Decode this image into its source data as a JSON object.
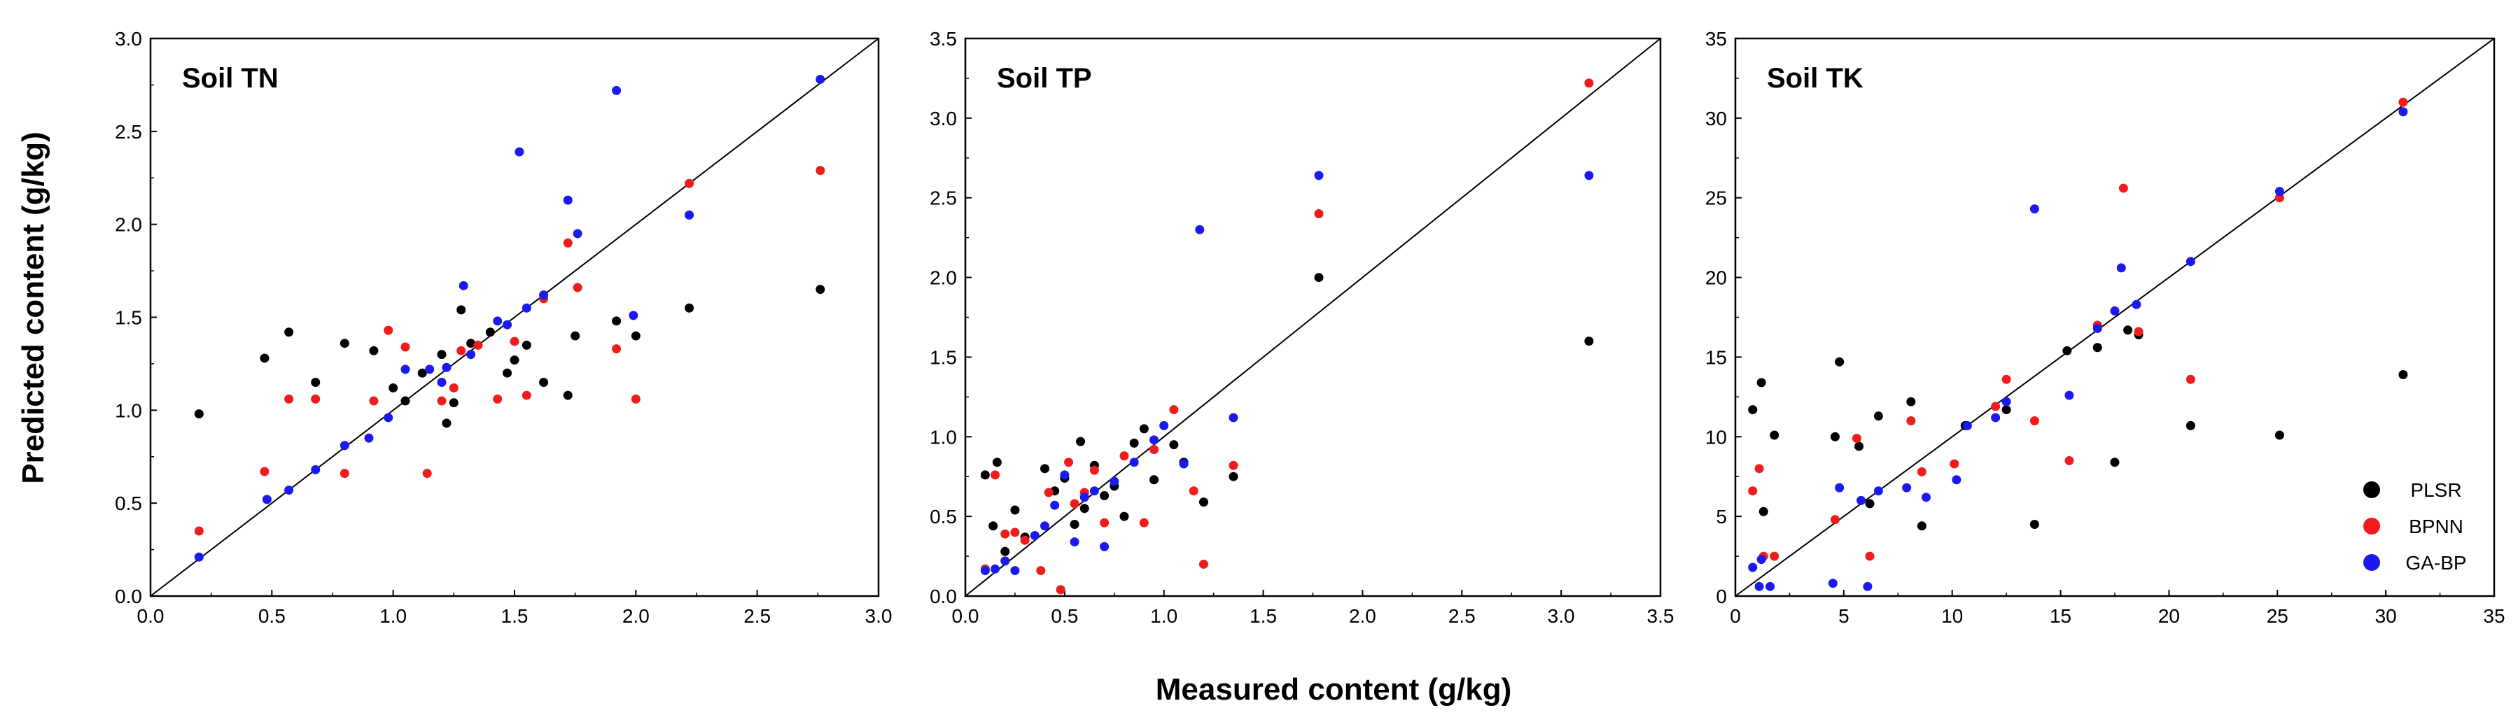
{
  "xlabel": "Measured content (g/kg)",
  "ylabel": "Predicted content (g/kg)",
  "legend": [
    {
      "name": "PLSR",
      "color": "#000000"
    },
    {
      "name": "BPNN",
      "color": "#ee1c1c"
    },
    {
      "name": "GA-BP",
      "color": "#1a1aee"
    }
  ],
  "chart_data": [
    {
      "type": "scatter",
      "title": "Soil TN",
      "xlim": [
        0,
        3.0
      ],
      "ylim": [
        0,
        3.0
      ],
      "xticks": [
        "0.0",
        "0.5",
        "1.0",
        "1.5",
        "2.0",
        "2.5",
        "3.0"
      ],
      "yticks": [
        "0.0",
        "0.5",
        "1.0",
        "1.5",
        "2.0",
        "2.5",
        "3.0"
      ],
      "tickvals": [
        0,
        0.5,
        1.0,
        1.5,
        2.0,
        2.5,
        3.0
      ],
      "reference_line": "1:1",
      "series": [
        {
          "name": "PLSR",
          "color": "#000000",
          "points": [
            [
              0.2,
              0.98
            ],
            [
              0.47,
              1.28
            ],
            [
              0.57,
              1.42
            ],
            [
              0.68,
              1.15
            ],
            [
              0.8,
              1.36
            ],
            [
              0.92,
              1.32
            ],
            [
              1.0,
              1.12
            ],
            [
              1.05,
              1.05
            ],
            [
              1.12,
              1.2
            ],
            [
              1.2,
              1.3
            ],
            [
              1.22,
              0.93
            ],
            [
              1.25,
              1.04
            ],
            [
              1.28,
              1.54
            ],
            [
              1.32,
              1.36
            ],
            [
              1.4,
              1.42
            ],
            [
              1.47,
              1.2
            ],
            [
              1.5,
              1.27
            ],
            [
              1.55,
              1.35
            ],
            [
              1.62,
              1.15
            ],
            [
              1.72,
              1.08
            ],
            [
              1.75,
              1.4
            ],
            [
              1.92,
              1.48
            ],
            [
              2.0,
              1.4
            ],
            [
              2.22,
              1.55
            ],
            [
              2.76,
              1.65
            ]
          ]
        },
        {
          "name": "BPNN",
          "color": "#ee1c1c",
          "points": [
            [
              0.2,
              0.35
            ],
            [
              0.47,
              0.67
            ],
            [
              0.57,
              1.06
            ],
            [
              0.68,
              1.06
            ],
            [
              0.8,
              0.66
            ],
            [
              0.92,
              1.05
            ],
            [
              0.98,
              1.43
            ],
            [
              1.05,
              1.34
            ],
            [
              1.14,
              0.66
            ],
            [
              1.2,
              1.05
            ],
            [
              1.25,
              1.12
            ],
            [
              1.28,
              1.32
            ],
            [
              1.35,
              1.35
            ],
            [
              1.43,
              1.06
            ],
            [
              1.5,
              1.37
            ],
            [
              1.55,
              1.08
            ],
            [
              1.62,
              1.6
            ],
            [
              1.72,
              1.9
            ],
            [
              1.76,
              1.66
            ],
            [
              1.92,
              1.33
            ],
            [
              2.0,
              1.06
            ],
            [
              2.22,
              2.22
            ],
            [
              2.76,
              2.29
            ]
          ]
        },
        {
          "name": "GA-BP",
          "color": "#1a1aee",
          "points": [
            [
              0.2,
              0.21
            ],
            [
              0.48,
              0.52
            ],
            [
              0.57,
              0.57
            ],
            [
              0.68,
              0.68
            ],
            [
              0.8,
              0.81
            ],
            [
              0.9,
              0.85
            ],
            [
              0.98,
              0.96
            ],
            [
              1.05,
              1.22
            ],
            [
              1.15,
              1.22
            ],
            [
              1.2,
              1.15
            ],
            [
              1.22,
              1.23
            ],
            [
              1.29,
              1.67
            ],
            [
              1.32,
              1.3
            ],
            [
              1.43,
              1.48
            ],
            [
              1.47,
              1.46
            ],
            [
              1.52,
              2.39
            ],
            [
              1.55,
              1.55
            ],
            [
              1.62,
              1.62
            ],
            [
              1.72,
              2.13
            ],
            [
              1.76,
              1.95
            ],
            [
              1.92,
              2.72
            ],
            [
              1.99,
              1.51
            ],
            [
              2.22,
              2.05
            ],
            [
              2.76,
              2.78
            ]
          ]
        }
      ]
    },
    {
      "type": "scatter",
      "title": "Soil TP",
      "xlim": [
        0,
        3.5
      ],
      "ylim": [
        0,
        3.5
      ],
      "xticks": [
        "0.0",
        "0.5",
        "1.0",
        "1.5",
        "2.0",
        "2.5",
        "3.0",
        "3.5"
      ],
      "yticks": [
        "0.0",
        "0.5",
        "1.0",
        "1.5",
        "2.0",
        "2.5",
        "3.0",
        "3.5"
      ],
      "tickvals": [
        0,
        0.5,
        1.0,
        1.5,
        2.0,
        2.5,
        3.0,
        3.5
      ],
      "reference_line": "1:1",
      "series": [
        {
          "name": "PLSR",
          "color": "#000000",
          "points": [
            [
              0.1,
              0.76
            ],
            [
              0.14,
              0.44
            ],
            [
              0.16,
              0.84
            ],
            [
              0.2,
              0.28
            ],
            [
              0.25,
              0.54
            ],
            [
              0.3,
              0.37
            ],
            [
              0.4,
              0.8
            ],
            [
              0.45,
              0.66
            ],
            [
              0.5,
              0.74
            ],
            [
              0.55,
              0.45
            ],
            [
              0.58,
              0.97
            ],
            [
              0.6,
              0.55
            ],
            [
              0.65,
              0.82
            ],
            [
              0.7,
              0.63
            ],
            [
              0.75,
              0.69
            ],
            [
              0.8,
              0.5
            ],
            [
              0.85,
              0.96
            ],
            [
              0.9,
              1.05
            ],
            [
              0.95,
              0.73
            ],
            [
              1.05,
              0.95
            ],
            [
              1.1,
              0.84
            ],
            [
              1.2,
              0.59
            ],
            [
              1.35,
              0.75
            ],
            [
              1.78,
              2.0
            ],
            [
              3.14,
              1.6
            ]
          ]
        },
        {
          "name": "BPNN",
          "color": "#ee1c1c",
          "points": [
            [
              0.1,
              0.17
            ],
            [
              0.15,
              0.76
            ],
            [
              0.2,
              0.39
            ],
            [
              0.25,
              0.4
            ],
            [
              0.3,
              0.35
            ],
            [
              0.38,
              0.16
            ],
            [
              0.42,
              0.65
            ],
            [
              0.48,
              0.04
            ],
            [
              0.52,
              0.84
            ],
            [
              0.55,
              0.58
            ],
            [
              0.6,
              0.65
            ],
            [
              0.65,
              0.79
            ],
            [
              0.7,
              0.46
            ],
            [
              0.8,
              0.88
            ],
            [
              0.9,
              0.46
            ],
            [
              0.95,
              0.92
            ],
            [
              1.05,
              1.17
            ],
            [
              1.15,
              0.66
            ],
            [
              1.2,
              0.2
            ],
            [
              1.35,
              0.82
            ],
            [
              1.78,
              2.4
            ],
            [
              3.14,
              3.22
            ]
          ]
        },
        {
          "name": "GA-BP",
          "color": "#1a1aee",
          "points": [
            [
              0.1,
              0.16
            ],
            [
              0.15,
              0.17
            ],
            [
              0.2,
              0.22
            ],
            [
              0.25,
              0.16
            ],
            [
              0.35,
              0.38
            ],
            [
              0.4,
              0.44
            ],
            [
              0.45,
              0.57
            ],
            [
              0.5,
              0.76
            ],
            [
              0.55,
              0.34
            ],
            [
              0.6,
              0.62
            ],
            [
              0.65,
              0.66
            ],
            [
              0.7,
              0.31
            ],
            [
              0.75,
              0.72
            ],
            [
              0.85,
              0.84
            ],
            [
              0.95,
              0.98
            ],
            [
              1.0,
              1.07
            ],
            [
              1.1,
              0.83
            ],
            [
              1.18,
              2.3
            ],
            [
              1.35,
              1.12
            ],
            [
              1.78,
              2.64
            ],
            [
              3.14,
              2.64
            ]
          ]
        }
      ]
    },
    {
      "type": "scatter",
      "title": "Soil TK",
      "xlim": [
        0,
        35
      ],
      "ylim": [
        0,
        35
      ],
      "xticks": [
        "0",
        "5",
        "10",
        "15",
        "20",
        "25",
        "30",
        "35"
      ],
      "yticks": [
        "0",
        "5",
        "10",
        "15",
        "20",
        "25",
        "30",
        "35"
      ],
      "tickvals": [
        0,
        5,
        10,
        15,
        20,
        25,
        30,
        35
      ],
      "reference_line": "1:1",
      "series": [
        {
          "name": "PLSR",
          "color": "#000000",
          "points": [
            [
              0.8,
              11.7
            ],
            [
              1.2,
              13.4
            ],
            [
              1.3,
              5.3
            ],
            [
              1.8,
              10.1
            ],
            [
              4.6,
              10.0
            ],
            [
              4.8,
              14.7
            ],
            [
              5.7,
              9.4
            ],
            [
              6.2,
              5.8
            ],
            [
              6.6,
              11.3
            ],
            [
              8.1,
              12.2
            ],
            [
              8.6,
              4.4
            ],
            [
              10.6,
              10.7
            ],
            [
              12.5,
              11.7
            ],
            [
              13.8,
              4.5
            ],
            [
              15.3,
              15.4
            ],
            [
              16.7,
              15.6
            ],
            [
              17.5,
              8.4
            ],
            [
              18.1,
              16.7
            ],
            [
              18.6,
              16.4
            ],
            [
              21.0,
              10.7
            ],
            [
              25.1,
              10.1
            ],
            [
              30.8,
              13.9
            ]
          ]
        },
        {
          "name": "BPNN",
          "color": "#ee1c1c",
          "points": [
            [
              0.8,
              6.6
            ],
            [
              1.1,
              8.0
            ],
            [
              1.3,
              2.5
            ],
            [
              1.8,
              2.5
            ],
            [
              4.6,
              4.8
            ],
            [
              5.6,
              9.9
            ],
            [
              6.2,
              2.5
            ],
            [
              8.1,
              11.0
            ],
            [
              8.6,
              7.8
            ],
            [
              10.1,
              8.3
            ],
            [
              12.0,
              11.9
            ],
            [
              12.5,
              13.6
            ],
            [
              13.8,
              11.0
            ],
            [
              15.4,
              8.5
            ],
            [
              16.7,
              17.0
            ],
            [
              17.9,
              25.6
            ],
            [
              18.6,
              16.6
            ],
            [
              21.0,
              13.6
            ],
            [
              25.1,
              25.0
            ],
            [
              30.8,
              31.0
            ]
          ]
        },
        {
          "name": "GA-BP",
          "color": "#1a1aee",
          "points": [
            [
              0.8,
              1.8
            ],
            [
              1.1,
              0.6
            ],
            [
              1.2,
              2.3
            ],
            [
              1.6,
              0.6
            ],
            [
              4.5,
              0.8
            ],
            [
              4.8,
              6.8
            ],
            [
              5.8,
              6.0
            ],
            [
              6.1,
              0.6
            ],
            [
              6.6,
              6.6
            ],
            [
              7.9,
              6.8
            ],
            [
              8.8,
              6.2
            ],
            [
              10.2,
              7.3
            ],
            [
              10.7,
              10.7
            ],
            [
              12.0,
              11.2
            ],
            [
              12.5,
              12.2
            ],
            [
              13.8,
              24.3
            ],
            [
              15.4,
              12.6
            ],
            [
              16.7,
              16.8
            ],
            [
              17.5,
              17.9
            ],
            [
              17.8,
              20.6
            ],
            [
              18.5,
              18.3
            ],
            [
              21.0,
              21.0
            ],
            [
              25.1,
              25.4
            ],
            [
              30.8,
              30.4
            ]
          ]
        }
      ]
    }
  ]
}
